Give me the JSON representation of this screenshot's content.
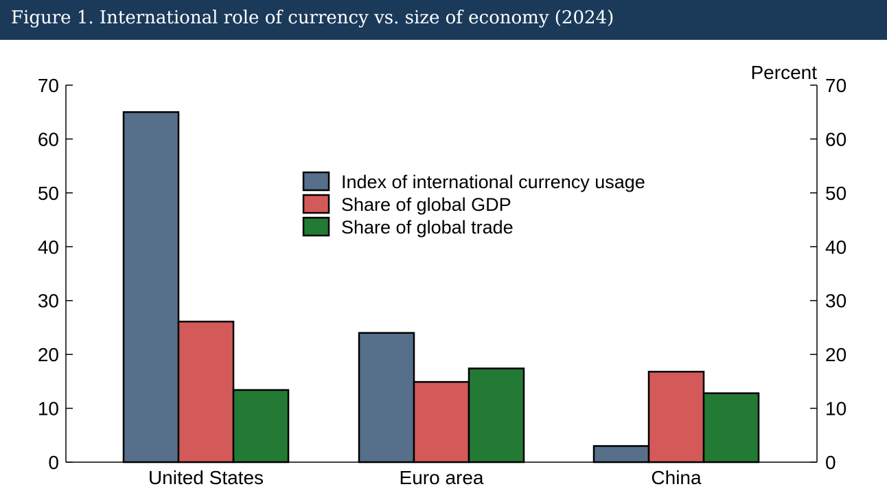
{
  "header": {
    "title": "Figure 1. International role of currency vs. size of economy (2024)"
  },
  "chart_data": {
    "type": "bar",
    "title": "Figure 1. International role of currency vs. size of economy (2024)",
    "unit_label": "Percent",
    "categories": [
      "United States",
      "Euro area",
      "China"
    ],
    "series": [
      {
        "name": "Index of international currency usage",
        "values": [
          65,
          24,
          3
        ],
        "color": "#566f8a"
      },
      {
        "name": "Share of global GDP",
        "values": [
          26.1,
          14.9,
          16.8
        ],
        "color": "#d45a59"
      },
      {
        "name": "Share of global trade",
        "values": [
          13.4,
          17.4,
          12.8
        ],
        "color": "#237a35"
      }
    ],
    "ylim": [
      0,
      70
    ],
    "yticks": [
      0,
      10,
      20,
      30,
      40,
      50,
      60,
      70
    ],
    "grid": false,
    "legend_position": "top-center"
  }
}
